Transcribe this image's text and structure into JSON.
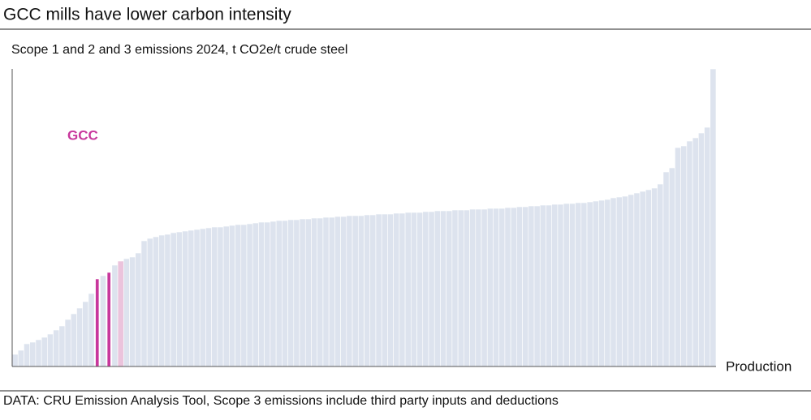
{
  "chart_data": {
    "type": "bar",
    "title": "GCC mills have lower carbon intensity",
    "subtitle": "Scope 1 and 2 and 3 emissions 2024, t CO2e/t crude steel",
    "x_label": "Production",
    "annotation": "GCC",
    "source": "DATA: CRU Emission Analysis Tool, Scope 3 emissions include third party inputs and deductions",
    "values": [
      0.15,
      0.2,
      0.28,
      0.3,
      0.33,
      0.36,
      0.4,
      0.45,
      0.5,
      0.58,
      0.65,
      0.72,
      0.8,
      0.9,
      1.08,
      1.12,
      1.16,
      1.25,
      1.3,
      1.33,
      1.35,
      1.4,
      1.55,
      1.58,
      1.6,
      1.62,
      1.63,
      1.65,
      1.66,
      1.67,
      1.68,
      1.69,
      1.7,
      1.71,
      1.72,
      1.72,
      1.73,
      1.74,
      1.75,
      1.75,
      1.76,
      1.77,
      1.78,
      1.78,
      1.79,
      1.8,
      1.8,
      1.81,
      1.81,
      1.82,
      1.82,
      1.83,
      1.83,
      1.84,
      1.84,
      1.85,
      1.85,
      1.86,
      1.86,
      1.86,
      1.87,
      1.87,
      1.88,
      1.88,
      1.88,
      1.89,
      1.89,
      1.9,
      1.9,
      1.9,
      1.91,
      1.91,
      1.92,
      1.92,
      1.92,
      1.93,
      1.93,
      1.93,
      1.94,
      1.94,
      1.94,
      1.95,
      1.95,
      1.95,
      1.96,
      1.96,
      1.97,
      1.97,
      1.98,
      1.98,
      1.99,
      1.99,
      2.0,
      2.0,
      2.01,
      2.01,
      2.02,
      2.02,
      2.03,
      2.04,
      2.05,
      2.06,
      2.08,
      2.09,
      2.1,
      2.12,
      2.14,
      2.16,
      2.18,
      2.2,
      2.25,
      2.4,
      2.45,
      2.7,
      2.72,
      2.78,
      2.82,
      2.88,
      2.95,
      3.67
    ],
    "color": "#dde3ee",
    "highlight_color": "#c8379c",
    "highlight_indices": [
      14,
      16
    ],
    "faint_highlight_color": "#ebc3dc",
    "faint_highlight_indices": [
      18
    ],
    "ylim": [
      0,
      3.67
    ]
  }
}
